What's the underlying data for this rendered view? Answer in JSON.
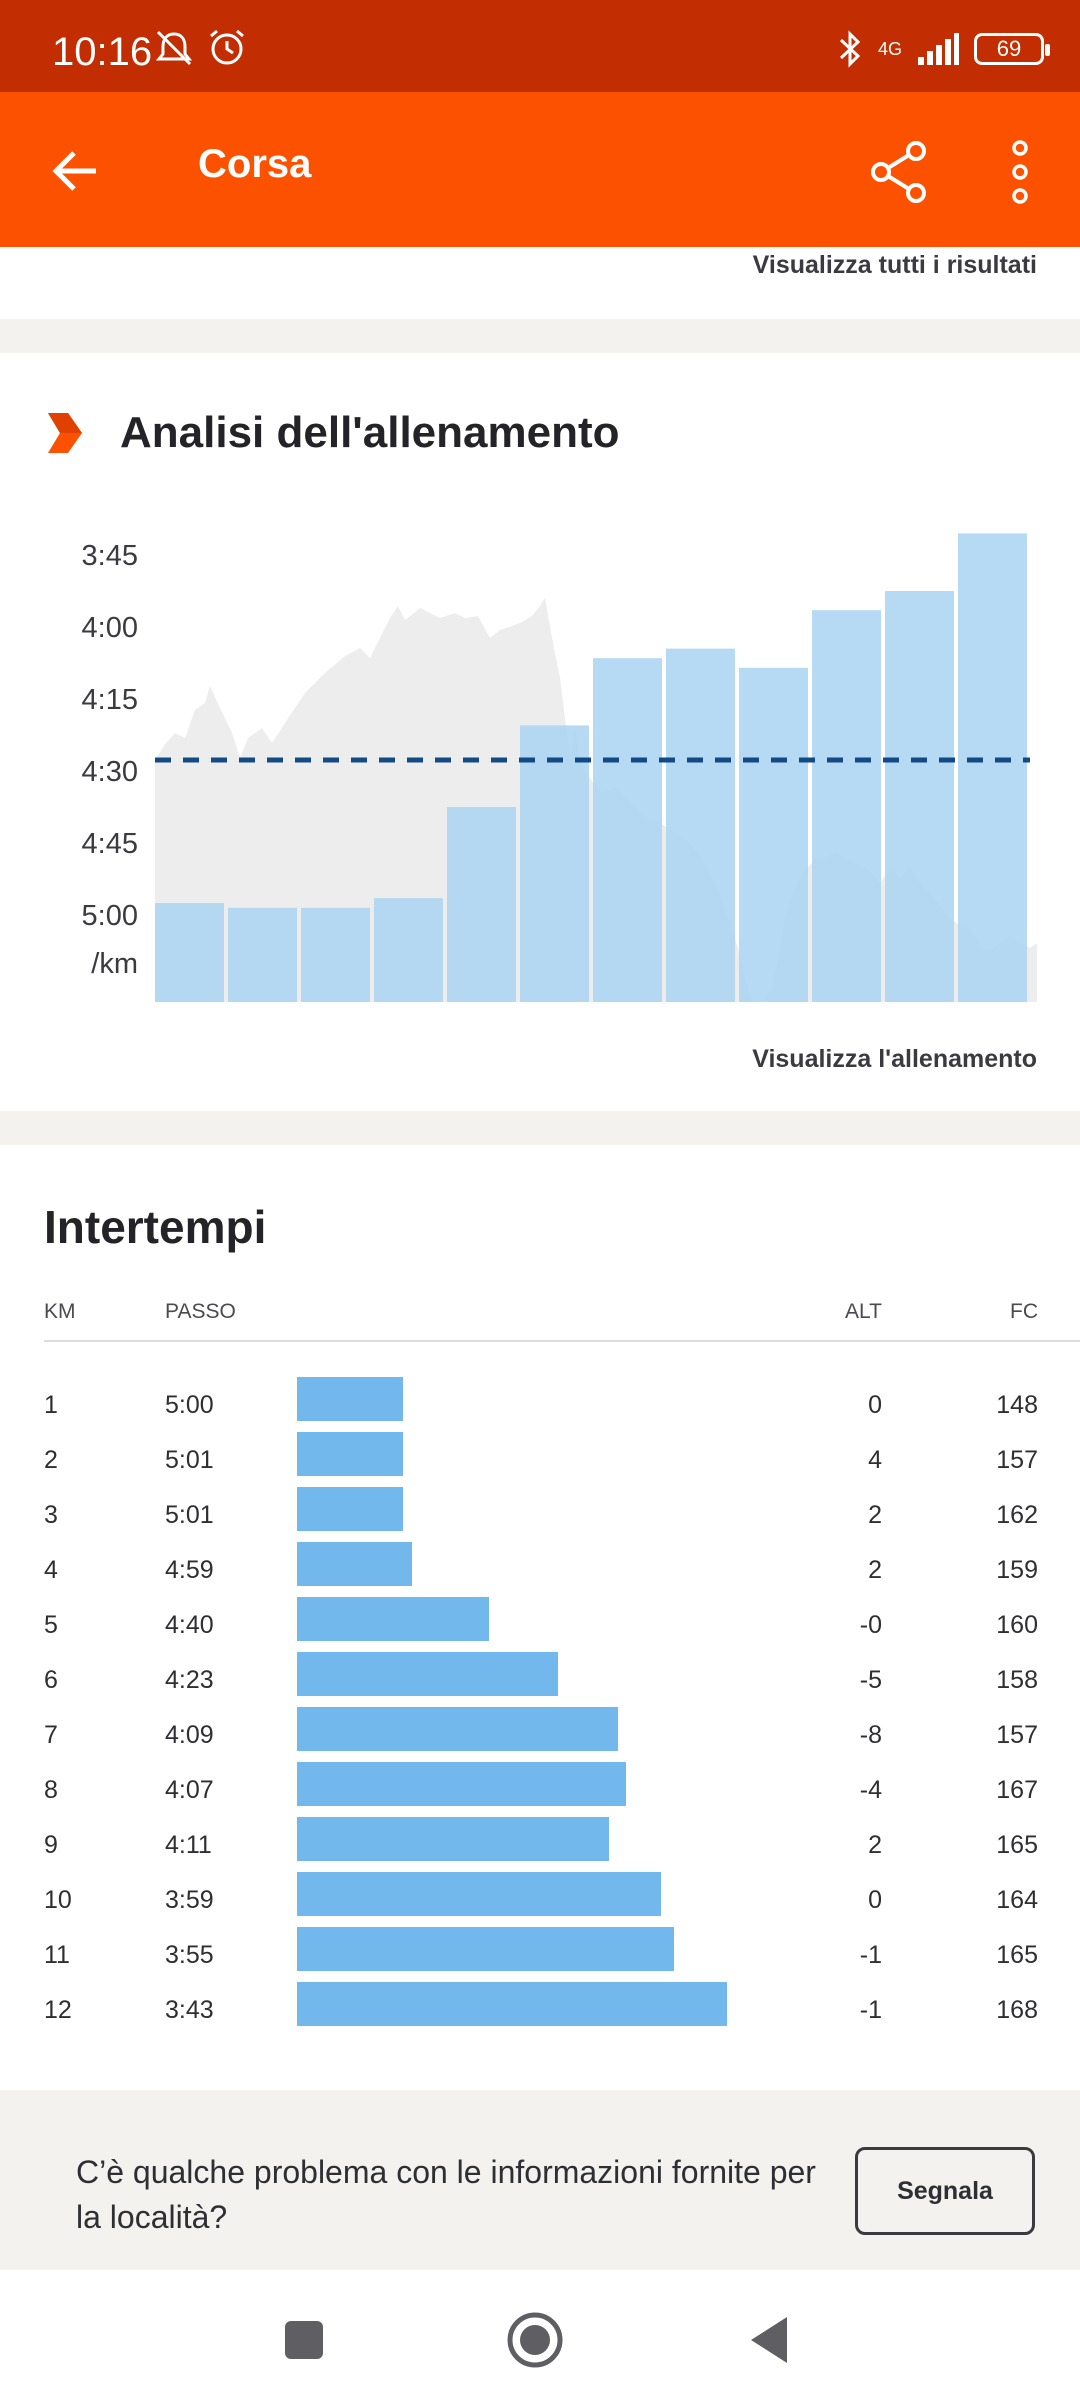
{
  "status_bar": {
    "time": "10:16",
    "network": "4G",
    "battery": "69",
    "icons": [
      "mute-icon",
      "alarm-icon",
      "bluetooth-icon",
      "signal-icon",
      "battery-icon"
    ]
  },
  "app_bar": {
    "title": "Corsa",
    "icons": [
      "back-arrow-icon",
      "share-icon",
      "more-vert-icon"
    ]
  },
  "results": {
    "link": "Visualizza tutti i risultati"
  },
  "analysis": {
    "title": "Analisi dell'allenamento",
    "link": "Visualizza l'allenamento"
  },
  "chart_data": {
    "type": "bar",
    "categories": [
      "1",
      "2",
      "3",
      "4",
      "5",
      "6",
      "7",
      "8",
      "9",
      "10",
      "11",
      "12"
    ],
    "values": [
      "5:00",
      "5:01",
      "5:01",
      "4:59",
      "4:40",
      "4:23",
      "4:09",
      "4:07",
      "4:11",
      "3:59",
      "3:55",
      "3:43"
    ],
    "y_ticks": [
      "3:45",
      "4:00",
      "4:15",
      "4:30",
      "4:45",
      "5:00"
    ],
    "y_unit": "/km",
    "y_axis_inverted": true,
    "average_line": "4:27",
    "elevation_area": true,
    "colors": {
      "bars": "#a9d2f2",
      "average_line": "#114a84",
      "elevation": "#ededed"
    }
  },
  "splits": {
    "title": "Intertempi",
    "headers": {
      "km": "KM",
      "pace": "PASSO",
      "alt": "ALT",
      "hr": "FC"
    },
    "rows": [
      {
        "km": "1",
        "pace": "5:00",
        "alt": "0",
        "hr": "148",
        "pace_fraction": 0.247
      },
      {
        "km": "2",
        "pace": "5:01",
        "alt": "4",
        "hr": "157",
        "pace_fraction": 0.247
      },
      {
        "km": "3",
        "pace": "5:01",
        "alt": "2",
        "hr": "162",
        "pace_fraction": 0.247
      },
      {
        "km": "4",
        "pace": "4:59",
        "alt": "2",
        "hr": "159",
        "pace_fraction": 0.268
      },
      {
        "km": "5",
        "pace": "4:40",
        "alt": "-0",
        "hr": "160",
        "pace_fraction": 0.447
      },
      {
        "km": "6",
        "pace": "4:23",
        "alt": "-5",
        "hr": "158",
        "pace_fraction": 0.606
      },
      {
        "km": "7",
        "pace": "4:09",
        "alt": "-8",
        "hr": "157",
        "pace_fraction": 0.747
      },
      {
        "km": "8",
        "pace": "4:07",
        "alt": "-4",
        "hr": "167",
        "pace_fraction": 0.766
      },
      {
        "km": "9",
        "pace": "4:11",
        "alt": "2",
        "hr": "165",
        "pace_fraction": 0.726
      },
      {
        "km": "10",
        "pace": "3:59",
        "alt": "0",
        "hr": "164",
        "pace_fraction": 0.847
      },
      {
        "km": "11",
        "pace": "3:55",
        "alt": "-1",
        "hr": "165",
        "pace_fraction": 0.877
      },
      {
        "km": "12",
        "pace": "3:43",
        "alt": "-1",
        "hr": "168",
        "pace_fraction": 1.0
      }
    ],
    "bar_color": "#72b8ec"
  },
  "report": {
    "text": "C’è qualche problema con le informazioni fornite per la località?",
    "button": "Segnala"
  },
  "nav_bar": {
    "icons": [
      "recents-square-icon",
      "home-circle-icon",
      "back-triangle-icon"
    ]
  }
}
